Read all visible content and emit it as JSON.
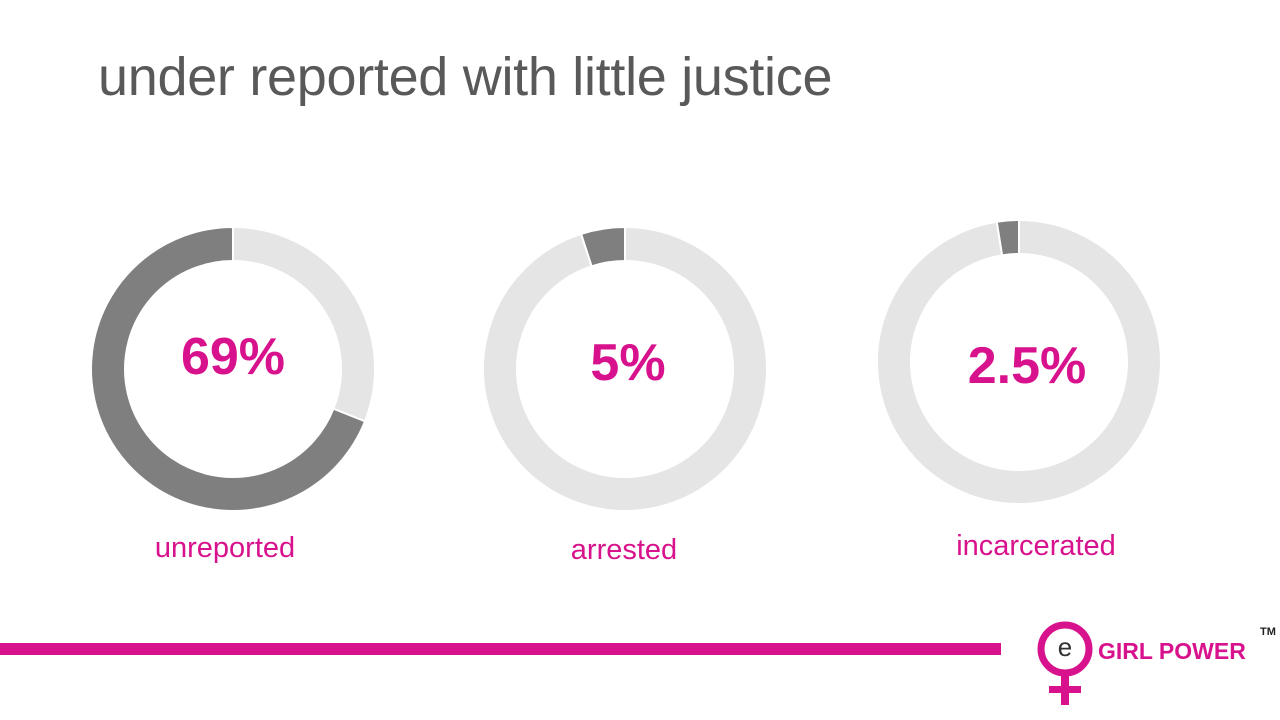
{
  "slide": {
    "title": "under reported with little justice"
  },
  "colors": {
    "accent": "#d8118c",
    "filled": "#7f7f7f",
    "track": "#e6e5e6",
    "title": "#595959"
  },
  "chart_data": [
    {
      "type": "pie",
      "subtype": "donut",
      "value_label": "69%",
      "label": "unreported",
      "values": [
        69,
        31
      ]
    },
    {
      "type": "pie",
      "subtype": "donut",
      "value_label": "5%",
      "label": "arrested",
      "values": [
        5,
        95
      ]
    },
    {
      "type": "pie",
      "subtype": "donut",
      "value_label": "2.5%",
      "label": "incarcerated",
      "values": [
        2.5,
        97.5
      ]
    }
  ],
  "logo": {
    "letter": "e",
    "text": "GIRL POWER",
    "trademark": "TM"
  }
}
